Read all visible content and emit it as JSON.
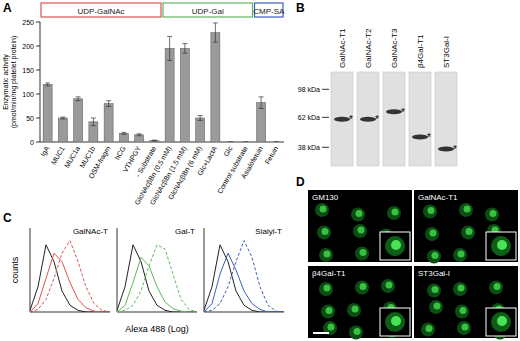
{
  "chart_data": [
    {
      "type": "bar",
      "panel_label": "A",
      "y_label": [
        "Enzymatic activity",
        "(pmol/min/mg platelet protein)"
      ],
      "categories": [
        "IgA",
        "MUC1",
        "MUC1a",
        "MUC1b",
        "OSM-fragm",
        "hCG",
        "VTHPGY",
        "- Substrate",
        "GlcNAcβBn (0.5 mM)",
        "GlcNAcβBn (1.5 mM)",
        "GlcNAcβBn (6 mM)",
        "Glc+LactA",
        "Glc",
        "Control substrate",
        "Asialofetuin",
        "Fetuin"
      ],
      "values": [
        120,
        50,
        90,
        42,
        80,
        18,
        15,
        3,
        195,
        195,
        50,
        228,
        0,
        0,
        82,
        0
      ],
      "errors": [
        3,
        2,
        4,
        8,
        6,
        2,
        2,
        1,
        25,
        10,
        5,
        20,
        0,
        0,
        12,
        0
      ],
      "color": "#9a9a9a",
      "ylim": [
        0,
        250
      ],
      "yticks": [
        0,
        50,
        100,
        150,
        200,
        250
      ],
      "grid": false,
      "groups": [
        {
          "label": "UDP-GalNAc",
          "color": "#d9534f",
          "span": [
            0,
            7
          ]
        },
        {
          "label": "UDP-Gal",
          "color": "#5cb85c",
          "span": [
            8,
            13
          ]
        },
        {
          "label": "CMP-SA",
          "color": "#3c5fbf",
          "span": [
            14,
            15
          ]
        }
      ]
    },
    {
      "type": "line",
      "panel_label": "C",
      "y_label": "counts",
      "x_label": "Alexa 488 (Log)",
      "tick_labels": false,
      "xlim": [
        0,
        100
      ],
      "ylim": [
        0,
        100
      ],
      "panels": [
        {
          "title": "GalNAc-T",
          "x": [
            0,
            10,
            20,
            30,
            40,
            50,
            60,
            70,
            80,
            90,
            100
          ],
          "series": [
            {
              "color": "#222222",
              "line_style": "solid",
              "values": [
                2,
                30,
                80,
                60,
                25,
                8,
                2,
                0,
                0,
                0,
                0
              ]
            },
            {
              "color": "#d9534f",
              "line_style": "solid",
              "values": [
                0,
                10,
                40,
                70,
                60,
                35,
                15,
                5,
                1,
                0,
                0
              ]
            },
            {
              "color": "#d9534f",
              "line_style": "dashed",
              "values": [
                0,
                3,
                15,
                40,
                70,
                85,
                60,
                30,
                10,
                2,
                0
              ]
            }
          ]
        },
        {
          "title": "Gal-T",
          "x": [
            0,
            10,
            20,
            30,
            40,
            50,
            60,
            70,
            80,
            90,
            100
          ],
          "series": [
            {
              "color": "#222222",
              "line_style": "solid",
              "values": [
                2,
                30,
                80,
                60,
                25,
                8,
                2,
                0,
                0,
                0,
                0
              ]
            },
            {
              "color": "#5cb85c",
              "line_style": "solid",
              "values": [
                0,
                8,
                35,
                65,
                55,
                30,
                12,
                4,
                1,
                0,
                0
              ]
            },
            {
              "color": "#5cb85c",
              "line_style": "dashed",
              "values": [
                0,
                2,
                8,
                25,
                55,
                80,
                75,
                45,
                15,
                3,
                0
              ]
            }
          ]
        },
        {
          "title": "Sialyl-T",
          "x": [
            0,
            10,
            20,
            30,
            40,
            50,
            60,
            70,
            80,
            90,
            100
          ],
          "series": [
            {
              "color": "#222222",
              "line_style": "solid",
              "values": [
                2,
                30,
                80,
                60,
                25,
                8,
                2,
                0,
                0,
                0,
                0
              ]
            },
            {
              "color": "#3c5fbf",
              "line_style": "solid",
              "values": [
                0,
                10,
                45,
                70,
                50,
                25,
                10,
                3,
                0,
                0,
                0
              ]
            },
            {
              "color": "#3c5fbf",
              "line_style": "dashed",
              "values": [
                0,
                2,
                10,
                30,
                60,
                85,
                65,
                30,
                8,
                1,
                0
              ]
            }
          ]
        }
      ]
    }
  ],
  "blot": {
    "panel_label": "B",
    "kda_range": [
      130,
      28
    ],
    "markers": [
      {
        "value": 98,
        "label": "98 kDa"
      },
      {
        "value": 62,
        "label": "62 kDa"
      },
      {
        "value": 38,
        "label": "38 kDa"
      }
    ],
    "lanes": [
      {
        "label": "GalNAc-T1",
        "band_kda": 60,
        "note": "*"
      },
      {
        "label": "GalNAc-T2",
        "band_kda": 60,
        "note": "*"
      },
      {
        "label": "GalNAc-T3",
        "band_kda": 68,
        "note": "*"
      },
      {
        "label": "β4Gal-T1",
        "band_kda": 45,
        "note": "*"
      },
      {
        "label": "ST3Gal-I",
        "band_kda": 37,
        "note": "*"
      }
    ]
  },
  "micrographs": {
    "panel_label": "D",
    "images": [
      "GM130",
      "GalNAc-T1",
      "β4Gal-T1",
      "ST3Gal-I"
    ]
  }
}
